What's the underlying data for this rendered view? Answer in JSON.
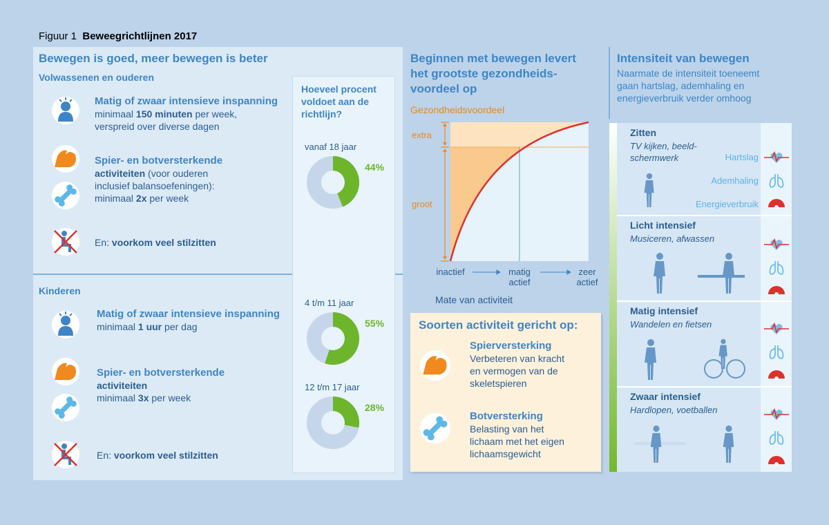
{
  "header": {
    "figure": "Figuur 1",
    "title": "Beweegrichtlijnen 2017"
  },
  "left": {
    "title": "Bewegen is goed, meer bewegen is beter",
    "adults": {
      "heading": "Volwassenen en ouderen",
      "items": [
        {
          "title": "Matig of zwaar intensieve inspanning",
          "lines": [
            [
              {
                "text": "minimaal "
              },
              {
                "text": "150 minuten",
                "bold": true
              },
              {
                "text": " per week,"
              }
            ],
            [
              {
                "text": "verspreid over diverse dagen"
              }
            ]
          ]
        },
        {
          "title": "Spier- en botversterkende",
          "lines": [
            [
              {
                "text": "activiteiten",
                "bold": true
              },
              {
                "text": " (voor ouderen"
              }
            ],
            [
              {
                "text": "inclusief balansoefeningen):"
              }
            ],
            [
              {
                "text": "minimaal "
              },
              {
                "text": "2x",
                "bold": true
              },
              {
                "text": " per week"
              }
            ]
          ]
        },
        {
          "lines": [
            [
              {
                "text": "En: "
              },
              {
                "text": "voorkom veel stilzitten",
                "bold": true
              }
            ]
          ]
        }
      ]
    },
    "children": {
      "heading": "Kinderen",
      "items": [
        {
          "title": "Matig of zwaar intensieve inspanning",
          "lines": [
            [
              {
                "text": "minimaal "
              },
              {
                "text": "1 uur",
                "bold": true
              },
              {
                "text": " per dag"
              }
            ]
          ]
        },
        {
          "title": "Spier- en botversterkende",
          "lines": [
            [
              {
                "text": "activiteiten",
                "bold": true
              }
            ],
            [
              {
                "text": "minimaal "
              },
              {
                "text": "3x",
                "bold": true
              },
              {
                "text": " per week"
              }
            ]
          ]
        },
        {
          "lines": [
            [
              {
                "text": "En: "
              },
              {
                "text": "voorkom veel stilzitten",
                "bold": true
              }
            ]
          ]
        }
      ]
    },
    "donuts": {
      "title": "Hoeveel procent voldoet aan de richtlijn?",
      "color": "#6db52a",
      "items": [
        {
          "label": "vanaf 18 jaar",
          "value": 44,
          "value_label": "44%"
        },
        {
          "label": "4 t/m 11 jaar",
          "value": 55,
          "value_label": "55%"
        },
        {
          "label": "12 t/m 17 jaar",
          "value": 28,
          "value_label": "28%"
        }
      ]
    }
  },
  "middle": {
    "title": [
      "Beginnen met bewegen levert",
      "het grootste gezondheids-",
      "voordeel op"
    ],
    "benefit_chart": {
      "y_title": "Gezondheidsvoordeel",
      "extra": "extra",
      "groot": "groot",
      "x_labels": [
        [
          "inactief"
        ],
        [
          "matig",
          "actief"
        ],
        [
          "zeer",
          "actief"
        ]
      ],
      "x_title": "Mate van activiteit"
    },
    "types": {
      "title": "Soorten activiteit gericht op:",
      "items": [
        {
          "title": "Spierversterking",
          "lines": [
            "Verbeteren van kracht",
            "en vermogen van de",
            "skeletspieren"
          ]
        },
        {
          "title": "Botversterking",
          "lines": [
            "Belasting van het",
            "lichaam met het eigen",
            "lichaamsgewicht"
          ]
        }
      ]
    }
  },
  "right": {
    "title": "Intensiteit van bewegen",
    "subtitle": [
      "Naarmate de intensiteit toeneemt",
      "gaan hartslag, ademhaling en",
      "energieverbruik verder omhoog"
    ],
    "indicators": [
      "Hartslag",
      "Ademhaling",
      "Energieverbruik"
    ],
    "rows": [
      {
        "title": "Zitten",
        "subtitle": [
          "TV kijken, beeld-",
          "schermwerk"
        ]
      },
      {
        "title": "Licht intensief",
        "subtitle": [
          "Musiceren, afwassen"
        ]
      },
      {
        "title": "Matig intensief",
        "subtitle": [
          "Wandelen en fietsen"
        ]
      },
      {
        "title": "Zwaar intensief",
        "subtitle": [
          "Hardlopen, voetballen"
        ]
      }
    ]
  }
}
